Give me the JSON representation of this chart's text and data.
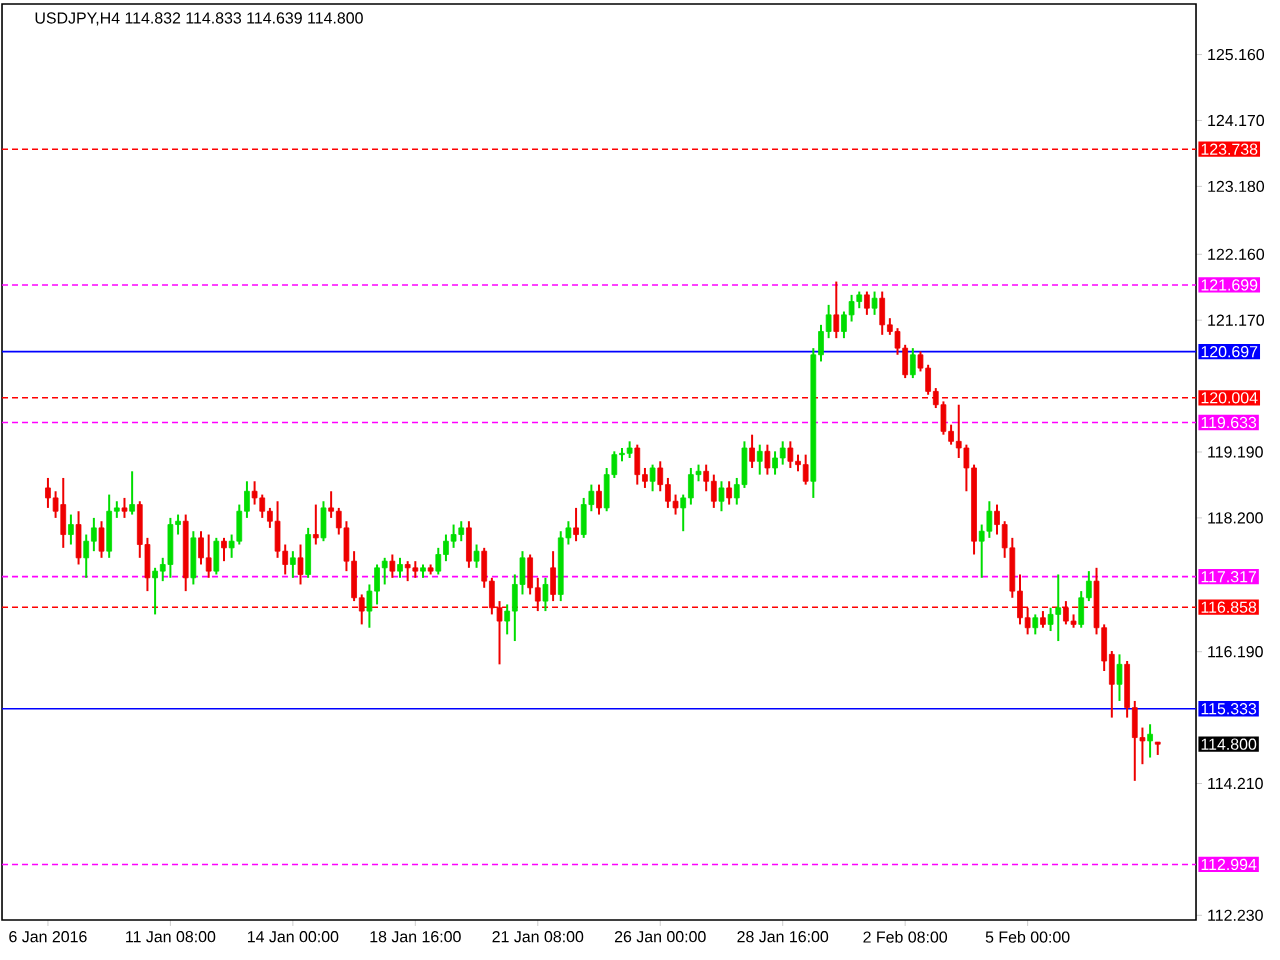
{
  "chart_data": {
    "type": "candlestick",
    "title": "USDJPY,H4  114.832 114.833 114.639 114.800",
    "categories": [
      "6 Jan 2016",
      null,
      null,
      null,
      null,
      null,
      null,
      null,
      null,
      null,
      null,
      null,
      null,
      null,
      null,
      null,
      "11 Jan 08:00",
      null,
      null,
      null,
      null,
      null,
      null,
      null,
      null,
      null,
      null,
      null,
      null,
      null,
      null,
      null,
      "14 Jan 00:00",
      null,
      null,
      null,
      null,
      null,
      null,
      null,
      null,
      null,
      null,
      null,
      null,
      null,
      null,
      null,
      "18 Jan 16:00",
      null,
      null,
      null,
      null,
      null,
      null,
      null,
      null,
      null,
      null,
      null,
      null,
      null,
      null,
      null,
      "21 Jan 08:00",
      null,
      null,
      null,
      null,
      null,
      null,
      null,
      null,
      null,
      null,
      null,
      null,
      null,
      null,
      null,
      "26 Jan 00:00",
      null,
      null,
      null,
      null,
      null,
      null,
      null,
      null,
      null,
      null,
      null,
      null,
      null,
      null,
      null,
      "28 Jan 16:00",
      null,
      null,
      null,
      null,
      null,
      null,
      null,
      null,
      null,
      null,
      null,
      null,
      null,
      null,
      null,
      "2 Feb 08:00",
      null,
      null,
      null,
      null,
      null,
      null,
      null,
      null,
      null,
      null,
      null,
      null,
      null,
      null,
      null,
      "5 Feb 00:00",
      null,
      null,
      null,
      null,
      null,
      null,
      null,
      null,
      null,
      null,
      null,
      null,
      null,
      null,
      null,
      null,
      null
    ],
    "ohlc": [
      [
        118.65,
        118.8,
        118.35,
        118.5
      ],
      [
        118.5,
        118.6,
        118.2,
        118.3
      ],
      [
        118.4,
        118.8,
        117.75,
        117.95
      ],
      [
        117.95,
        118.25,
        117.8,
        118.1
      ],
      [
        118.1,
        118.3,
        117.5,
        117.6
      ],
      [
        117.6,
        117.95,
        117.3,
        117.85
      ],
      [
        117.85,
        118.2,
        117.7,
        118.05
      ],
      [
        118.05,
        118.15,
        117.6,
        117.7
      ],
      [
        117.7,
        118.55,
        117.6,
        118.3
      ],
      [
        118.3,
        118.45,
        118.2,
        118.35
      ],
      [
        118.35,
        118.5,
        118.2,
        118.3
      ],
      [
        118.3,
        118.9,
        118.25,
        118.4
      ],
      [
        118.4,
        118.45,
        117.6,
        117.8
      ],
      [
        117.8,
        117.9,
        117.1,
        117.3
      ],
      [
        117.3,
        117.45,
        116.75,
        117.4
      ],
      [
        117.4,
        117.6,
        117.25,
        117.5
      ],
      [
        117.5,
        118.2,
        117.3,
        118.1
      ],
      [
        118.1,
        118.25,
        117.95,
        118.15
      ],
      [
        118.15,
        118.25,
        117.1,
        117.3
      ],
      [
        117.3,
        118.0,
        117.2,
        117.9
      ],
      [
        117.9,
        118.0,
        117.5,
        117.6
      ],
      [
        117.6,
        117.95,
        117.3,
        117.4
      ],
      [
        117.4,
        117.9,
        117.35,
        117.85
      ],
      [
        117.85,
        117.9,
        117.55,
        117.75
      ],
      [
        117.75,
        117.95,
        117.6,
        117.85
      ],
      [
        117.85,
        118.4,
        117.8,
        118.3
      ],
      [
        118.3,
        118.75,
        118.2,
        118.6
      ],
      [
        118.6,
        118.75,
        118.4,
        118.5
      ],
      [
        118.5,
        118.55,
        118.2,
        118.3
      ],
      [
        118.3,
        118.35,
        118.05,
        118.15
      ],
      [
        118.15,
        118.45,
        117.6,
        117.7
      ],
      [
        117.7,
        117.8,
        117.35,
        117.5
      ],
      [
        117.5,
        117.7,
        117.3,
        117.6
      ],
      [
        117.6,
        117.8,
        117.2,
        117.35
      ],
      [
        117.35,
        118.05,
        117.3,
        117.95
      ],
      [
        117.95,
        118.4,
        117.8,
        117.9
      ],
      [
        117.9,
        118.45,
        117.85,
        118.35
      ],
      [
        118.35,
        118.6,
        118.2,
        118.3
      ],
      [
        118.3,
        118.35,
        117.95,
        118.05
      ],
      [
        118.05,
        118.15,
        117.4,
        117.55
      ],
      [
        117.55,
        117.7,
        116.95,
        117.0
      ],
      [
        117.0,
        117.05,
        116.6,
        116.8
      ],
      [
        116.8,
        117.2,
        116.55,
        117.1
      ],
      [
        117.1,
        117.5,
        116.9,
        117.45
      ],
      [
        117.45,
        117.6,
        117.2,
        117.55
      ],
      [
        117.55,
        117.65,
        117.3,
        117.4
      ],
      [
        117.4,
        117.6,
        117.3,
        117.5
      ],
      [
        117.5,
        117.55,
        117.25,
        117.45
      ],
      [
        117.45,
        117.55,
        117.3,
        117.4
      ],
      [
        117.4,
        117.5,
        117.3,
        117.45
      ],
      [
        117.45,
        117.5,
        117.35,
        117.4
      ],
      [
        117.4,
        117.75,
        117.35,
        117.65
      ],
      [
        117.65,
        117.95,
        117.55,
        117.85
      ],
      [
        117.85,
        118.1,
        117.75,
        117.95
      ],
      [
        117.95,
        118.15,
        117.85,
        118.05
      ],
      [
        118.05,
        118.15,
        117.45,
        117.55
      ],
      [
        117.55,
        117.8,
        117.45,
        117.7
      ],
      [
        117.7,
        117.75,
        117.15,
        117.25
      ],
      [
        117.25,
        117.3,
        116.75,
        116.85
      ],
      [
        116.85,
        116.95,
        116.0,
        116.65
      ],
      [
        116.65,
        116.9,
        116.45,
        116.8
      ],
      [
        116.8,
        117.35,
        116.35,
        117.2
      ],
      [
        117.2,
        117.7,
        117.05,
        117.6
      ],
      [
        117.6,
        117.65,
        117.05,
        117.15
      ],
      [
        117.15,
        117.3,
        116.8,
        116.95
      ],
      [
        116.95,
        117.3,
        116.8,
        117.2
      ],
      [
        117.45,
        117.7,
        116.95,
        117.05
      ],
      [
        117.05,
        118.0,
        116.95,
        117.9
      ],
      [
        117.9,
        118.15,
        117.8,
        118.05
      ],
      [
        118.05,
        118.35,
        117.85,
        117.95
      ],
      [
        117.95,
        118.5,
        117.9,
        118.4
      ],
      [
        118.4,
        118.7,
        118.3,
        118.6
      ],
      [
        118.6,
        118.7,
        118.25,
        118.35
      ],
      [
        118.35,
        118.95,
        118.3,
        118.85
      ],
      [
        118.85,
        119.2,
        118.8,
        119.15
      ],
      [
        119.15,
        119.25,
        119.05,
        119.17
      ],
      [
        119.17,
        119.35,
        119.1,
        119.25
      ],
      [
        119.25,
        119.3,
        118.7,
        118.85
      ],
      [
        118.85,
        118.95,
        118.65,
        118.75
      ],
      [
        118.75,
        119.0,
        118.6,
        118.95
      ],
      [
        118.95,
        119.05,
        118.6,
        118.7
      ],
      [
        118.7,
        118.8,
        118.35,
        118.45
      ],
      [
        118.45,
        118.55,
        118.25,
        118.35
      ],
      [
        118.35,
        118.55,
        118.0,
        118.5
      ],
      [
        118.5,
        118.95,
        118.4,
        118.85
      ],
      [
        118.85,
        119.0,
        118.75,
        118.9
      ],
      [
        118.9,
        119.0,
        118.6,
        118.75
      ],
      [
        118.75,
        118.85,
        118.35,
        118.45
      ],
      [
        118.45,
        118.75,
        118.3,
        118.65
      ],
      [
        118.65,
        118.75,
        118.4,
        118.5
      ],
      [
        118.5,
        118.8,
        118.4,
        118.7
      ],
      [
        118.7,
        119.35,
        118.65,
        119.25
      ],
      [
        119.25,
        119.45,
        118.95,
        119.05
      ],
      [
        119.05,
        119.3,
        118.85,
        119.2
      ],
      [
        119.2,
        119.3,
        118.85,
        118.95
      ],
      [
        118.95,
        119.2,
        118.85,
        119.1
      ],
      [
        119.1,
        119.35,
        119.0,
        119.25
      ],
      [
        119.25,
        119.35,
        118.95,
        119.05
      ],
      [
        119.05,
        119.15,
        118.9,
        119.0
      ],
      [
        119.0,
        119.15,
        118.7,
        118.75
      ],
      [
        118.75,
        120.75,
        118.5,
        120.65
      ],
      [
        120.65,
        121.1,
        120.55,
        121.0
      ],
      [
        121.0,
        121.4,
        120.9,
        121.25
      ],
      [
        121.25,
        121.75,
        120.9,
        121.0
      ],
      [
        121.0,
        121.3,
        120.9,
        121.25
      ],
      [
        121.25,
        121.55,
        121.15,
        121.45
      ],
      [
        121.45,
        121.6,
        121.35,
        121.55
      ],
      [
        121.55,
        121.6,
        121.25,
        121.35
      ],
      [
        121.35,
        121.6,
        121.25,
        121.5
      ],
      [
        121.5,
        121.6,
        120.95,
        121.1
      ],
      [
        121.1,
        121.2,
        120.95,
        121.0
      ],
      [
        121.0,
        121.05,
        120.65,
        120.75
      ],
      [
        120.75,
        120.8,
        120.3,
        120.35
      ],
      [
        120.35,
        120.75,
        120.3,
        120.65
      ],
      [
        120.65,
        120.7,
        120.4,
        120.45
      ],
      [
        120.45,
        120.5,
        120.05,
        120.1
      ],
      [
        120.1,
        120.15,
        119.85,
        119.9
      ],
      [
        119.9,
        119.95,
        119.45,
        119.5
      ],
      [
        119.5,
        119.6,
        119.3,
        119.35
      ],
      [
        119.35,
        119.9,
        119.1,
        119.25
      ],
      [
        119.25,
        119.3,
        118.6,
        118.95
      ],
      [
        118.95,
        119.0,
        117.65,
        117.85
      ],
      [
        117.85,
        118.1,
        117.3,
        118.0
      ],
      [
        118.0,
        118.45,
        117.9,
        118.3
      ],
      [
        118.3,
        118.4,
        117.95,
        118.1
      ],
      [
        118.1,
        118.15,
        117.6,
        117.75
      ],
      [
        117.75,
        117.9,
        117.0,
        117.1
      ],
      [
        117.1,
        117.35,
        116.6,
        116.7
      ],
      [
        116.7,
        116.85,
        116.45,
        116.55
      ],
      [
        116.55,
        116.75,
        116.45,
        116.7
      ],
      [
        116.7,
        116.8,
        116.55,
        116.6
      ],
      [
        116.6,
        116.85,
        116.5,
        116.75
      ],
      [
        116.75,
        117.35,
        116.35,
        116.85
      ],
      [
        116.85,
        116.95,
        116.6,
        116.65
      ],
      [
        116.65,
        116.75,
        116.55,
        116.6
      ],
      [
        116.6,
        117.1,
        116.55,
        117.0
      ],
      [
        117.0,
        117.4,
        116.95,
        117.25
      ],
      [
        117.25,
        117.45,
        116.45,
        116.55
      ],
      [
        116.55,
        116.6,
        115.9,
        116.05
      ],
      [
        116.15,
        116.2,
        115.2,
        115.7
      ],
      [
        115.7,
        116.15,
        115.45,
        116.0
      ],
      [
        116.0,
        116.05,
        115.2,
        115.35
      ],
      [
        115.35,
        115.45,
        114.25,
        114.9
      ],
      [
        114.9,
        115.05,
        114.5,
        114.85
      ],
      [
        114.85,
        115.1,
        114.6,
        114.95
      ],
      [
        114.832,
        114.833,
        114.639,
        114.8
      ]
    ],
    "colors": [
      "#ee0000",
      "#ee0000",
      "#ee0000",
      "#00dd00",
      "#ee0000",
      "#00dd00",
      "#00dd00",
      "#ee0000",
      "#00dd00",
      "#00dd00",
      "#ee0000",
      "#00dd00",
      "#ee0000",
      "#ee0000",
      "#00dd00",
      "#00dd00",
      "#00dd00",
      "#00dd00",
      "#ee0000",
      "#00dd00",
      "#ee0000",
      "#ee0000",
      "#00dd00",
      "#ee0000",
      "#00dd00",
      "#00dd00",
      "#00dd00",
      "#ee0000",
      "#ee0000",
      "#ee0000",
      "#ee0000",
      "#ee0000",
      "#00dd00",
      "#ee0000",
      "#00dd00",
      "#ee0000",
      "#00dd00",
      "#ee0000",
      "#ee0000",
      "#ee0000",
      "#ee0000",
      "#ee0000",
      "#00dd00",
      "#00dd00",
      "#00dd00",
      "#ee0000",
      "#00dd00",
      "#ee0000",
      "#ee0000",
      "#00dd00",
      "#ee0000",
      "#00dd00",
      "#00dd00",
      "#00dd00",
      "#00dd00",
      "#ee0000",
      "#00dd00",
      "#ee0000",
      "#ee0000",
      "#ee0000",
      "#00dd00",
      "#00dd00",
      "#00dd00",
      "#ee0000",
      "#ee0000",
      "#00dd00",
      "#ee0000",
      "#00dd00",
      "#00dd00",
      "#ee0000",
      "#00dd00",
      "#00dd00",
      "#ee0000",
      "#00dd00",
      "#00dd00",
      "#00dd00",
      "#00dd00",
      "#ee0000",
      "#ee0000",
      "#00dd00",
      "#ee0000",
      "#ee0000",
      "#ee0000",
      "#00dd00",
      "#00dd00",
      "#00dd00",
      "#ee0000",
      "#ee0000",
      "#00dd00",
      "#ee0000",
      "#00dd00",
      "#00dd00",
      "#ee0000",
      "#00dd00",
      "#ee0000",
      "#00dd00",
      "#00dd00",
      "#ee0000",
      "#ee0000",
      "#ee0000",
      "#00dd00",
      "#00dd00",
      "#00dd00",
      "#ee0000",
      "#00dd00",
      "#00dd00",
      "#00dd00",
      "#ee0000",
      "#00dd00",
      "#ee0000",
      "#ee0000",
      "#ee0000",
      "#ee0000",
      "#00dd00",
      "#ee0000",
      "#ee0000",
      "#ee0000",
      "#ee0000",
      "#ee0000",
      "#ee0000",
      "#ee0000",
      "#ee0000",
      "#00dd00",
      "#00dd00",
      "#ee0000",
      "#ee0000",
      "#ee0000",
      "#ee0000",
      "#ee0000",
      "#00dd00",
      "#ee0000",
      "#00dd00",
      "#00dd00",
      "#ee0000",
      "#ee0000",
      "#00dd00",
      "#00dd00",
      "#ee0000",
      "#ee0000",
      "#ee0000",
      "#00dd00",
      "#ee0000",
      "#ee0000",
      "#ee0000",
      "#00dd00",
      "#ee0000"
    ],
    "ylim": [
      112.16,
      125.92
    ],
    "yticks": [
      {
        "value": 112.23,
        "label": "112.230"
      },
      {
        "value": 114.21,
        "label": "114.210"
      },
      {
        "value": 116.19,
        "label": "116.190"
      },
      {
        "value": 118.2,
        "label": "118.200"
      },
      {
        "value": 119.19,
        "label": "119.190"
      },
      {
        "value": 121.17,
        "label": "121.170"
      },
      {
        "value": 122.16,
        "label": "122.160"
      },
      {
        "value": 123.18,
        "label": "123.180"
      },
      {
        "value": 124.17,
        "label": "124.170"
      },
      {
        "value": 125.16,
        "label": "125.160"
      }
    ],
    "ref_lines": [
      {
        "axis": "y",
        "value": 123.738,
        "label": "123.738",
        "color": "#ff0000",
        "line_style": "dashed"
      },
      {
        "axis": "y",
        "value": 121.699,
        "label": "121.699",
        "color": "#ff00ff",
        "line_style": "dashed"
      },
      {
        "axis": "y",
        "value": 120.697,
        "label": "120.697",
        "color": "#0000ff",
        "line_style": "solid"
      },
      {
        "axis": "y",
        "value": 120.004,
        "label": "120.004",
        "color": "#ff0000",
        "line_style": "dashed"
      },
      {
        "axis": "y",
        "value": 119.633,
        "label": "119.633",
        "color": "#ff00ff",
        "line_style": "dashed"
      },
      {
        "axis": "y",
        "value": 117.317,
        "label": "117.317",
        "color": "#ff00ff",
        "line_style": "dashed"
      },
      {
        "axis": "y",
        "value": 116.858,
        "label": "116.858",
        "color": "#ff0000",
        "line_style": "dashed"
      },
      {
        "axis": "y",
        "value": 115.333,
        "label": "115.333",
        "color": "#0000ff",
        "line_style": "solid"
      },
      {
        "axis": "y",
        "value": 112.994,
        "label": "112.994",
        "color": "#ff00ff",
        "line_style": "dashed"
      }
    ],
    "annotations": [
      "114.800"
    ]
  }
}
